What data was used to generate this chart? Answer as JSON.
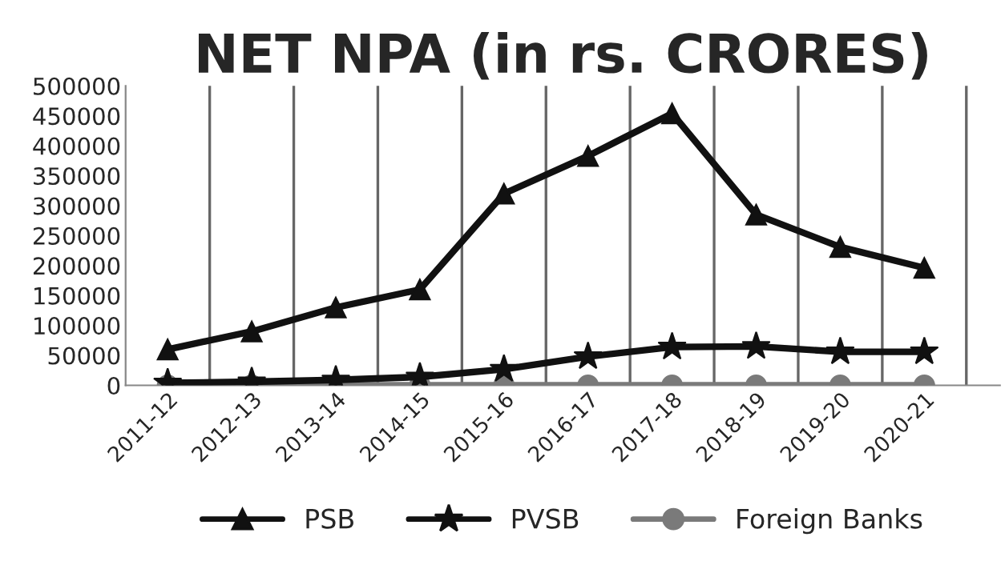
{
  "chart_data": {
    "type": "line",
    "title": "NET NPA (in rs. CRORES)",
    "categories": [
      "2011-12",
      "2012-13",
      "2013-14",
      "2014-15",
      "2015-16",
      "2016-17",
      "2017-18",
      "2018-19",
      "2019-20",
      "2020-21"
    ],
    "series": [
      {
        "name": "PSB",
        "color": "#111111",
        "marker": "triangle",
        "values": [
          60000,
          90000,
          130000,
          160000,
          320000,
          383000,
          454000,
          285000,
          231000,
          196000
        ]
      },
      {
        "name": "PVSB",
        "color": "#111111",
        "marker": "star",
        "values": [
          4000,
          6000,
          9000,
          14000,
          27000,
          48000,
          64000,
          65000,
          56000,
          56000
        ]
      },
      {
        "name": "Foreign Banks",
        "color": "#7a7a7a",
        "marker": "circle",
        "values": [
          0,
          0,
          0,
          0,
          0,
          0,
          0,
          0,
          0,
          0
        ]
      }
    ],
    "ylim": [
      0,
      500000
    ],
    "yticks": [
      0,
      50000,
      100000,
      150000,
      200000,
      250000,
      300000,
      350000,
      400000,
      450000,
      500000
    ],
    "grid": "x",
    "legend": "bottom",
    "line_style": "solid"
  }
}
